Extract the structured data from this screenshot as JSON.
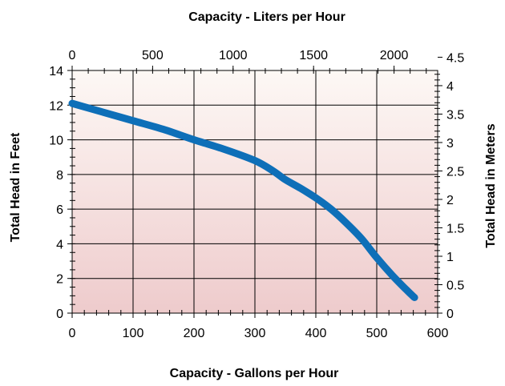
{
  "chart_data": {
    "type": "line",
    "title": "",
    "xlabel": "Capacity - Gallons per Hour",
    "ylabel": "Total Head in Feet",
    "x2label": "Capacity - Liters per Hour",
    "y2label": "Total Head in Meters",
    "xlim": [
      0,
      600
    ],
    "ylim": [
      0,
      14
    ],
    "x2lim": [
      0,
      2271
    ],
    "y2lim": [
      0,
      4.267
    ],
    "xticks": [
      "0",
      "100",
      "200",
      "300",
      "400",
      "500",
      "600"
    ],
    "yticks": [
      "0",
      "2",
      "4",
      "6",
      "8",
      "10",
      "12",
      "14"
    ],
    "x2ticks": [
      "0",
      "500",
      "1000",
      "1500",
      "2000"
    ],
    "y2ticks": [
      "0",
      "0.5",
      "1",
      "1.5",
      "2",
      "2.5",
      "3",
      "3.5",
      "4",
      "4.5"
    ],
    "grid": true,
    "series": [
      {
        "name": "",
        "color": "#0e6fb8",
        "x": [
          0,
          50,
          100,
          150,
          200,
          250,
          300,
          330,
          350,
          375,
          400,
          425,
          450,
          475,
          500,
          525,
          550,
          562
        ],
        "y": [
          12.1,
          11.6,
          11.1,
          10.6,
          10.0,
          9.45,
          8.8,
          8.2,
          7.7,
          7.2,
          6.65,
          6.0,
          5.2,
          4.3,
          3.2,
          2.2,
          1.3,
          0.9
        ]
      }
    ],
    "colors": {
      "background_top": "#fdf8f5",
      "background_bottom": "#eecbcc",
      "grid": "#000000",
      "line": "#0e6fb8"
    }
  }
}
